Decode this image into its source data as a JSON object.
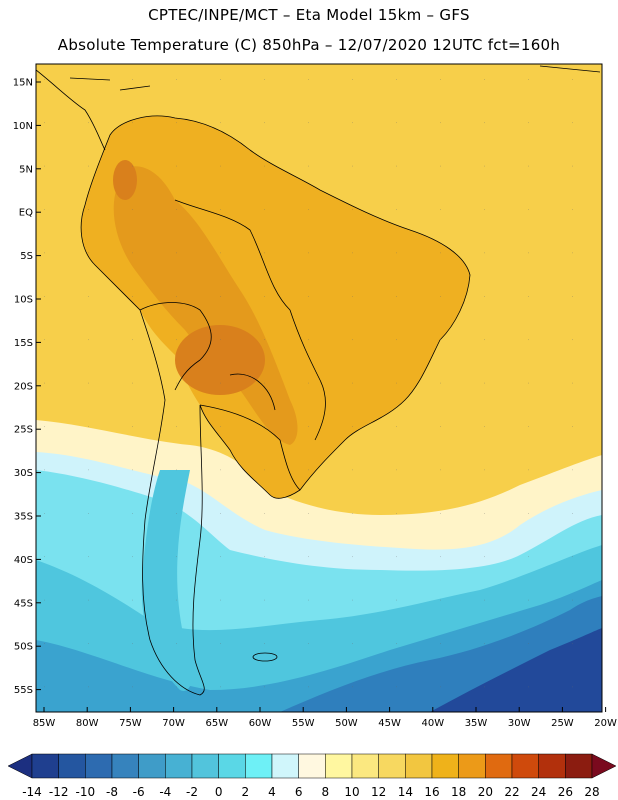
{
  "header": {
    "line1": "CPTEC/INPE/MCT –  Eta Model 15km – GFS",
    "line2": "Absolute Temperature (C) 850hPa – 12/07/2020 12UTC fct=160h"
  },
  "axes": {
    "lat_labels": [
      "15N",
      "10N",
      "5N",
      "EQ",
      "5S",
      "10S",
      "15S",
      "20S",
      "25S",
      "30S",
      "35S",
      "40S",
      "45S",
      "50S",
      "55S"
    ],
    "lon_labels": [
      "85W",
      "80W",
      "75W",
      "70W",
      "65W",
      "60W",
      "55W",
      "50W",
      "45W",
      "40W",
      "35W",
      "30W",
      "25W",
      "20W"
    ]
  },
  "colorbar": {
    "labels": [
      "-14",
      "-12",
      "-10",
      "-8",
      "-6",
      "-4",
      "-2",
      "0",
      "2",
      "4",
      "6",
      "8",
      "10",
      "12",
      "14",
      "16",
      "18",
      "20",
      "22",
      "24",
      "26",
      "28"
    ],
    "colors": [
      "#1f3f8f",
      "#2456a0",
      "#2d6bb0",
      "#3683bd",
      "#3f9cc8",
      "#47b1d3",
      "#52c4dc",
      "#5ad7e6",
      "#6ef0f6",
      "#d0f6fb",
      "#fff8e0",
      "#fff7a0",
      "#fbe880",
      "#f7d860",
      "#f2c640",
      "#efb21a",
      "#ec9a18",
      "#e06a10",
      "#cf4a0c",
      "#b2300c",
      "#8b1c10"
    ],
    "low_color": "#1c2f80",
    "high_color": "#7a0a1e"
  },
  "map_colors": {
    "ocean_warm": "#f7cf4a",
    "land_warm": "#efb021",
    "land_hot": "#e49a1c",
    "hot_spot": "#d9801c",
    "cool_pale": "#fff4c8",
    "pale_cyan": "#cff3fb",
    "light_cyan": "#7ae2ef",
    "mid_cyan": "#4fc6de",
    "blue": "#3aa3cf",
    "deep_blue": "#2f7fbd",
    "darkest": "#22499a"
  }
}
